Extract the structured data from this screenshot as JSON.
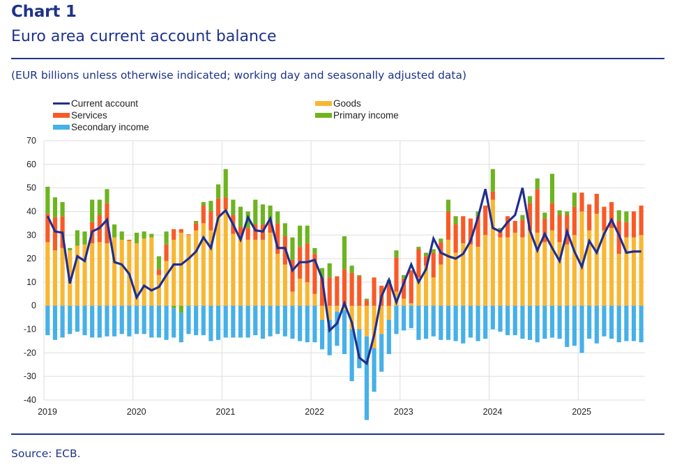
{
  "header": {
    "chart_number": "Chart 1",
    "title": "Euro area current account balance",
    "subtitle": "(EUR billions unless otherwise indicated; working day and seasonally adjusted data)"
  },
  "footer": {
    "source": "Source: ECB."
  },
  "colors": {
    "brand": "#1e3388",
    "current_account": "#1f2f8f",
    "goods": "#f8b733",
    "services": "#f85a27",
    "primary_income": "#6db41f",
    "secondary_income": "#46b0e8",
    "grid": "#dedede"
  },
  "legend": [
    {
      "key": "current_account",
      "label": "Current account",
      "kind": "line"
    },
    {
      "key": "goods",
      "label": "Goods",
      "kind": "bar"
    },
    {
      "key": "services",
      "label": "Services",
      "kind": "bar"
    },
    {
      "key": "primary_income",
      "label": "Primary income",
      "kind": "bar"
    },
    {
      "key": "secondary_income",
      "label": "Secondary income",
      "kind": "bar"
    }
  ],
  "chart_data": {
    "type": "bar",
    "subtype": "stacked bar with line overlay",
    "title": "Euro area current account balance",
    "subtitle": "(EUR billions unless otherwise indicated; working day and seasonally adjusted data)",
    "frequency": "monthly",
    "x_start": "2019-01",
    "x_end": "2025-09",
    "xlabel": "",
    "ylabel": "EUR billions",
    "ylim": [
      -40,
      70
    ],
    "yticks": [
      70,
      60,
      50,
      40,
      30,
      20,
      10,
      0,
      -10,
      -20,
      -30,
      -40
    ],
    "xtick_labels": [
      "2019",
      "2020",
      "2021",
      "2022",
      "2023",
      "2024",
      "2025"
    ],
    "grid": true,
    "legend_position": "top",
    "series": [
      {
        "name": "Goods",
        "key": "goods",
        "kind": "bar",
        "values": [
          27,
          23.5,
          24.5,
          23.5,
          25.5,
          26,
          26.5,
          27,
          26.5,
          29,
          28,
          27.5,
          26.5,
          28.5,
          29,
          13,
          19,
          28,
          31,
          30,
          32,
          35,
          32,
          38,
          41,
          30.5,
          29,
          28,
          28,
          28,
          31,
          22,
          17.5,
          6,
          11.5,
          10,
          5,
          -6,
          -6,
          -2.5,
          -2,
          -10,
          -10,
          -13,
          -18,
          -12,
          -6,
          6,
          3,
          1,
          12,
          17,
          12,
          17.5,
          28,
          22.5,
          26.5,
          26,
          25,
          30,
          45,
          29,
          29,
          31,
          29,
          32,
          31,
          27,
          32,
          27,
          26,
          30,
          40,
          32,
          39,
          32,
          33,
          22,
          29,
          29,
          30
        ]
      },
      {
        "name": "Services",
        "key": "services",
        "kind": "bar",
        "values": [
          12,
          14,
          13.5,
          0,
          0,
          0,
          9,
          11.5,
          17,
          0,
          0,
          0.5,
          0,
          0,
          0,
          2.5,
          7,
          4.5,
          1.5,
          0.3,
          3,
          7.5,
          8,
          7.5,
          5,
          8,
          4.5,
          5,
          6.5,
          6.5,
          5,
          13,
          12,
          13.5,
          13.5,
          16.5,
          17,
          12,
          12,
          12.5,
          15.5,
          14,
          12.5,
          2.5,
          12,
          8.5,
          9.5,
          14.5,
          8.5,
          14,
          12,
          4,
          10.5,
          9.5,
          12,
          12,
          11.5,
          11,
          13,
          12.5,
          3.5,
          3,
          9,
          5,
          7.5,
          11.5,
          18.5,
          10,
          11.5,
          11.5,
          12.5,
          12,
          8,
          11,
          8.5,
          10,
          11,
          14,
          6.5,
          11,
          12.5
        ]
      },
      {
        "name": "Primary income",
        "key": "primary_income",
        "kind": "bar",
        "values": [
          11.5,
          8.5,
          6,
          1,
          6.5,
          5.5,
          9.5,
          6.5,
          6,
          5.5,
          3.5,
          0,
          4.5,
          3,
          1.5,
          5.5,
          5.5,
          -1,
          -3,
          0,
          1,
          1.5,
          4.5,
          6,
          12,
          6.5,
          8.5,
          7,
          10.5,
          8.5,
          6.5,
          5,
          5.5,
          9.5,
          9,
          7.5,
          2.5,
          4,
          6,
          0,
          14,
          3,
          0.5,
          0.5,
          0,
          0,
          1.5,
          3,
          1.5,
          0,
          1,
          1.5,
          1.5,
          1.5,
          5,
          3.5,
          0,
          0,
          2,
          0,
          9.5,
          1,
          0,
          0,
          2,
          3,
          4.5,
          2.5,
          12.5,
          2,
          1.5,
          6,
          0,
          0,
          0,
          0,
          0,
          4.5,
          4.5,
          0,
          0
        ]
      },
      {
        "name": "Secondary income",
        "key": "secondary_income",
        "kind": "bar",
        "values": [
          -12.5,
          -14.5,
          -13.5,
          -12,
          -11,
          -12.5,
          -13.5,
          -13.5,
          -13,
          -13,
          -12,
          -13,
          -12,
          -12,
          -13.5,
          -13.5,
          -14.5,
          -12.5,
          -12.5,
          -12,
          -12.5,
          -12.5,
          -15,
          -14.5,
          -13.5,
          -13.5,
          -13.5,
          -13.5,
          -12.5,
          -14,
          -13,
          -12,
          -13,
          -14,
          -15,
          -15.5,
          -15.5,
          -12.5,
          -15,
          -14.5,
          -18.5,
          -22,
          -16.5,
          -35.5,
          -18.5,
          -16,
          -14.5,
          -12,
          -10.5,
          -9.5,
          -14.5,
          -14,
          -13,
          -14.5,
          -14.5,
          -15,
          -16,
          -13.5,
          -15,
          -14,
          -10,
          -11,
          -12.5,
          -12.5,
          -14,
          -14.5,
          -15.5,
          -14,
          -13.5,
          -14,
          -17.5,
          -17,
          -20,
          -14,
          -16,
          -13,
          -14,
          -15.5,
          -15,
          -15,
          -15.5
        ]
      },
      {
        "name": "Current account",
        "key": "current_account",
        "kind": "line",
        "values": [
          38,
          31.5,
          31,
          9.5,
          21,
          19,
          31.5,
          33,
          36.5,
          18.5,
          17.5,
          13.5,
          3.5,
          8.5,
          6.5,
          8,
          13,
          17.5,
          17.5,
          20,
          23,
          29,
          24.5,
          37.5,
          40.5,
          34.5,
          28,
          37.5,
          32,
          31.5,
          37,
          24.5,
          24.5,
          15,
          18.5,
          18.5,
          19.5,
          11.5,
          -10.5,
          -7.5,
          1,
          -7,
          -22,
          -24.5,
          -12.5,
          4,
          11,
          1.5,
          9.5,
          17.5,
          10,
          15.5,
          28.5,
          22.5,
          21,
          20,
          22,
          27.5,
          37.5,
          49.5,
          33,
          31.5,
          35.5,
          38.5,
          50,
          32,
          23.5,
          30.5,
          24.5,
          19,
          31.5,
          23,
          16.5,
          27.5,
          22.5,
          30.5,
          36.5,
          30,
          22.5,
          23,
          23
        ]
      }
    ]
  }
}
